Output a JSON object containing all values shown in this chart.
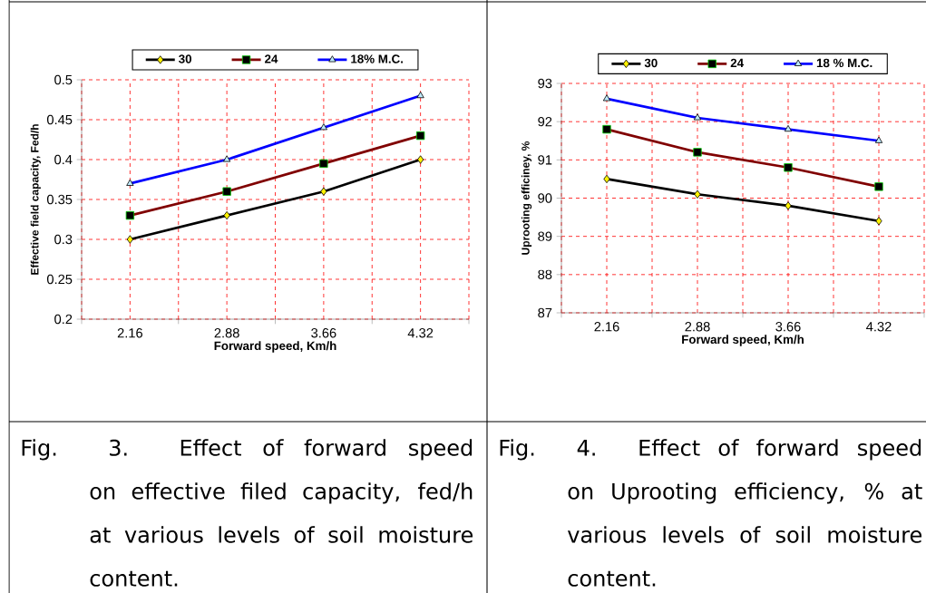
{
  "chart_data": [
    {
      "type": "line",
      "categories": [
        "2.16",
        "2.88",
        "3.66",
        "4.32"
      ],
      "xlabel": "Forward speed, Km/h",
      "ylabel": "Effective field capacity, Fed/h",
      "ylim": [
        0.2,
        0.5
      ],
      "yticks": [
        0.2,
        0.25,
        0.3,
        0.35,
        0.4,
        0.45,
        0.5
      ],
      "grid": true,
      "legend": "top",
      "line_style": "solid",
      "series": [
        {
          "name": "30",
          "color": "#000000",
          "marker": "diamond",
          "values": [
            0.3,
            0.33,
            0.36,
            0.4
          ]
        },
        {
          "name": "24",
          "color": "#800000",
          "marker": "square",
          "values": [
            0.33,
            0.36,
            0.395,
            0.43
          ]
        },
        {
          "name": "18% M.C.",
          "color": "#0000ff",
          "marker": "triangle",
          "values": [
            0.37,
            0.4,
            0.44,
            0.48
          ]
        }
      ],
      "annotations": [
        "Fig. 3. Effect of forward speed on effective filed capacity, fed/h at various levels of soil moisture content."
      ]
    },
    {
      "type": "line",
      "categories": [
        "2.16",
        "2.88",
        "3.66",
        "4.32"
      ],
      "xlabel": "Forward speed, Km/h",
      "ylabel": "Uprooting efficiney, %",
      "ylim": [
        87,
        93
      ],
      "yticks": [
        87,
        88,
        89,
        90,
        91,
        92,
        93
      ],
      "grid": true,
      "legend": "top",
      "line_style": "solid",
      "series": [
        {
          "name": "30",
          "color": "#000000",
          "marker": "diamond",
          "values": [
            90.5,
            90.1,
            89.8,
            89.4
          ]
        },
        {
          "name": "24",
          "color": "#800000",
          "marker": "square",
          "values": [
            91.8,
            91.2,
            90.8,
            90.3
          ]
        },
        {
          "name": "18 % M.C.",
          "color": "#0000ff",
          "marker": "triangle",
          "values": [
            92.6,
            92.1,
            91.8,
            91.5
          ]
        }
      ],
      "annotations": [
        "Fig. 4. Effect of forward speed on Uprooting efficiency, % at various levels of soil moisture content."
      ]
    }
  ]
}
